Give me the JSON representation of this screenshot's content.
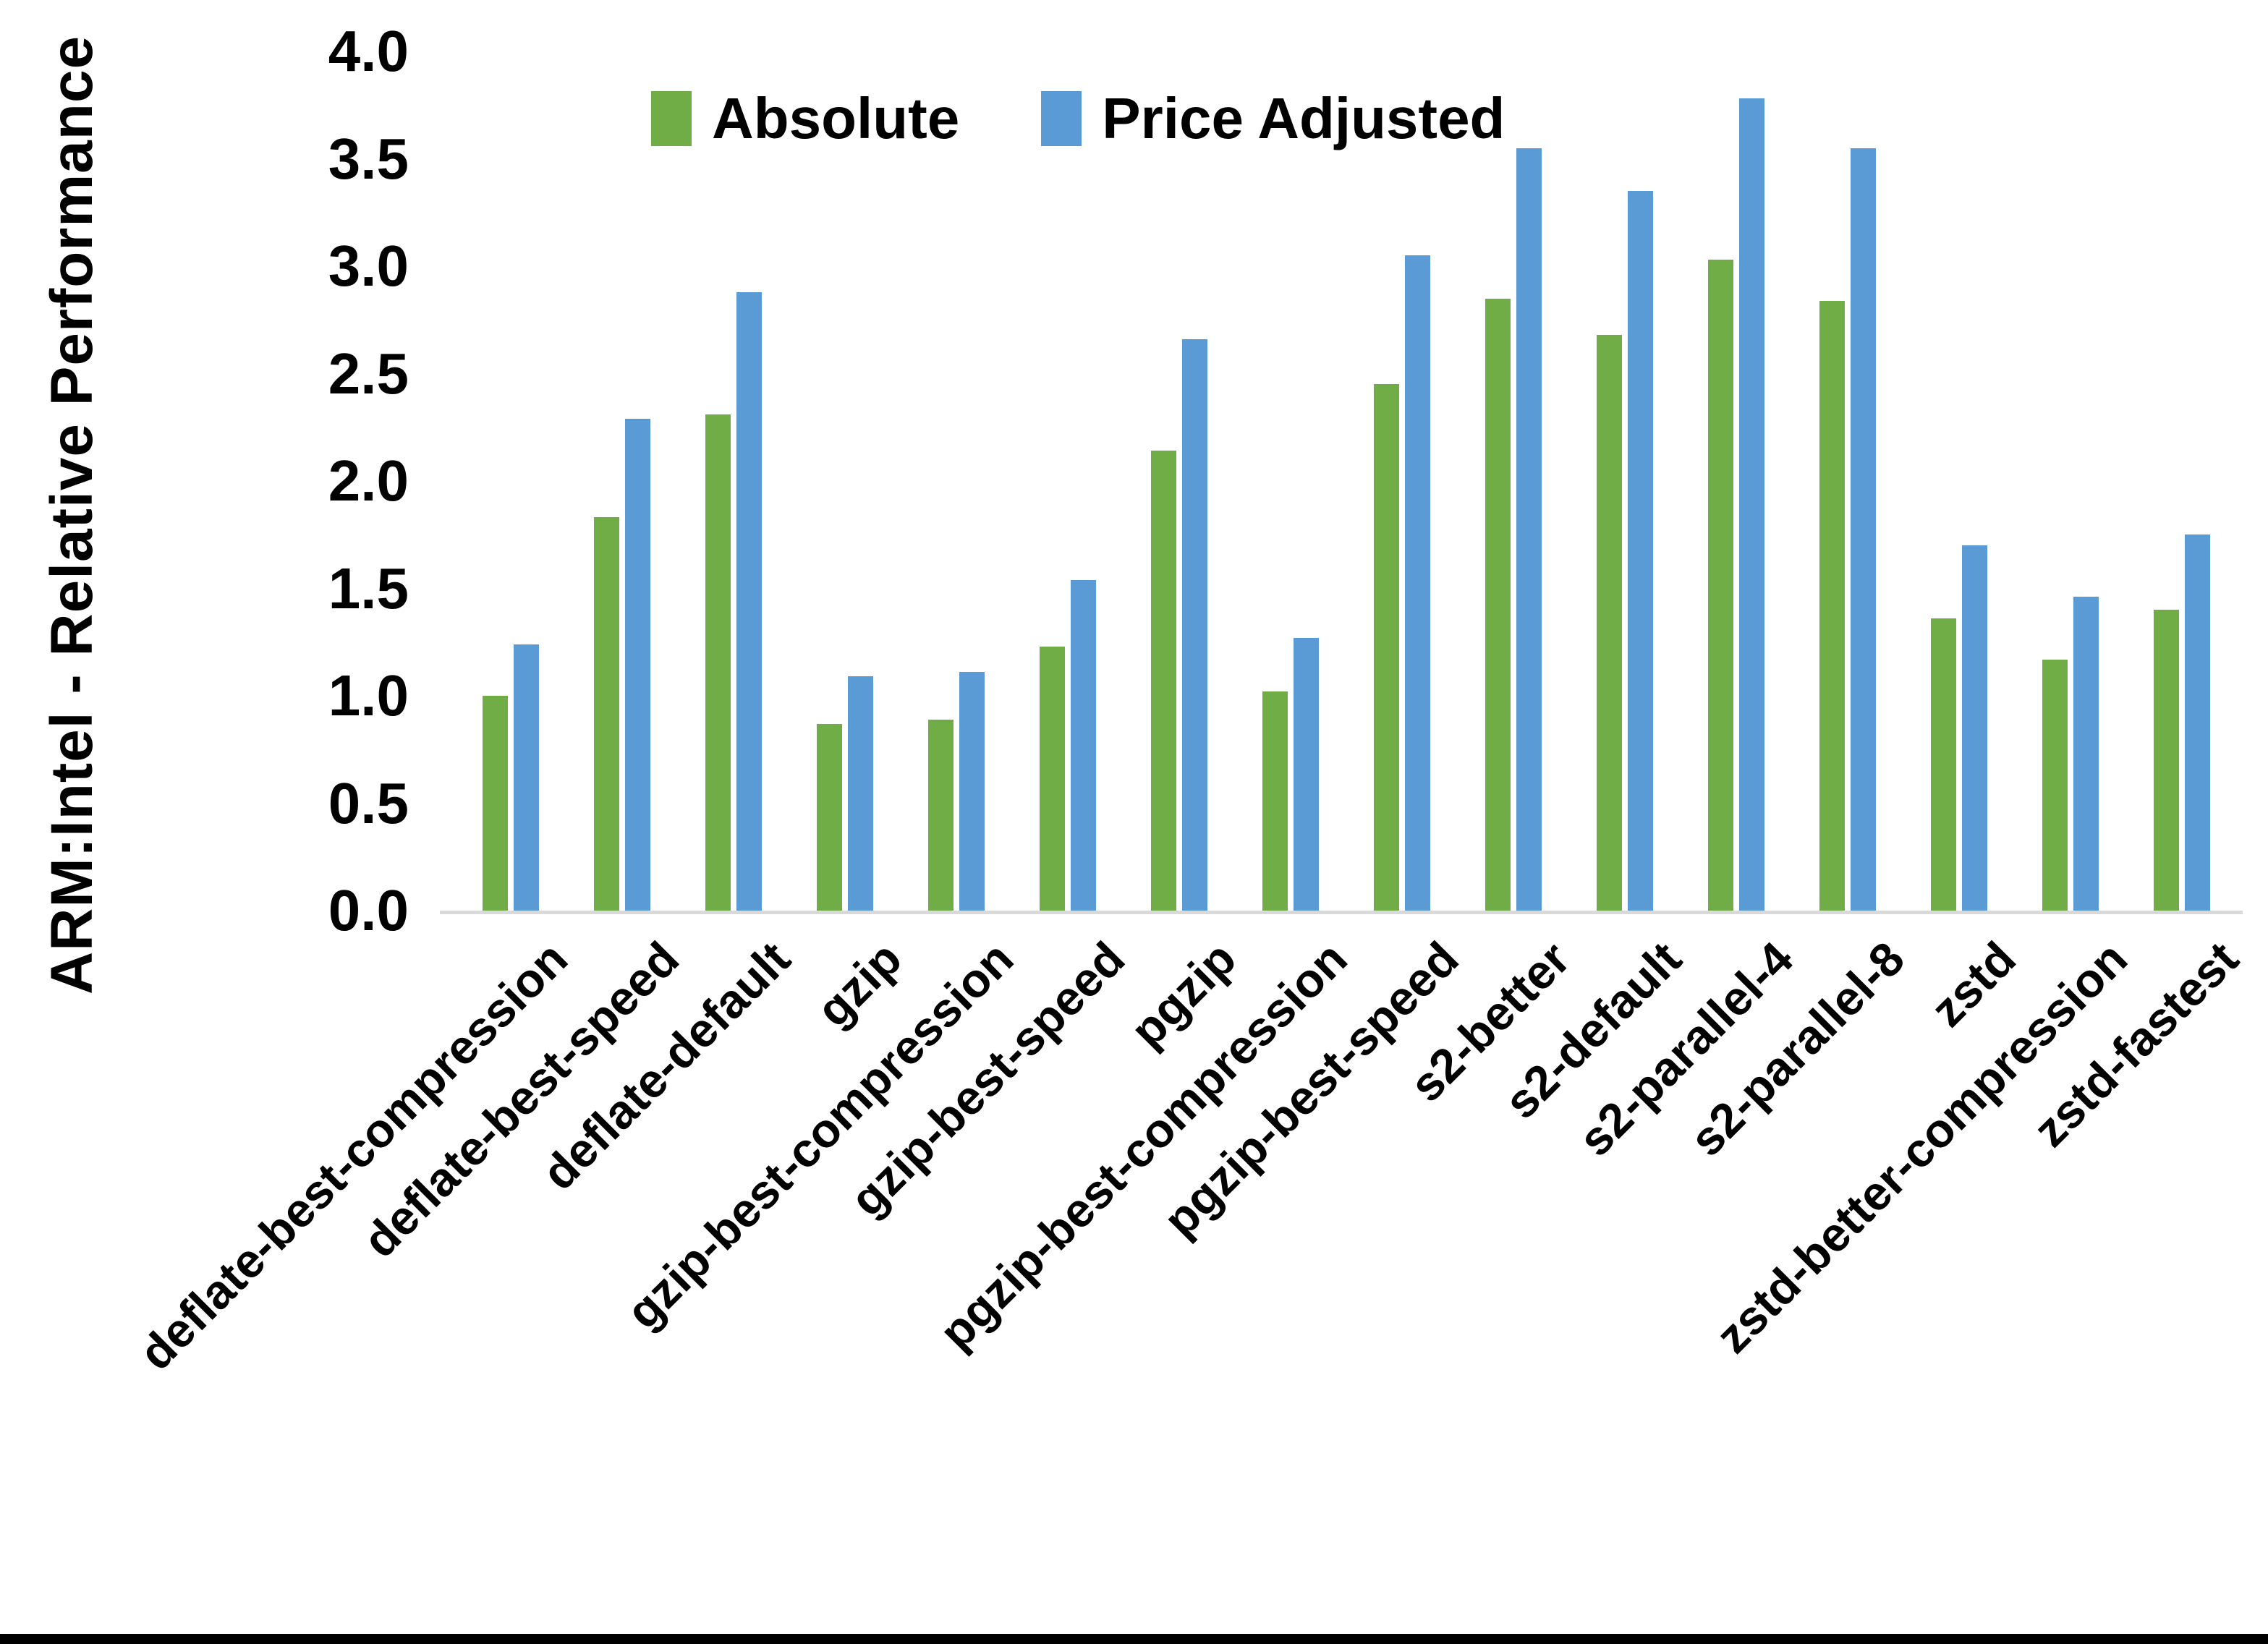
{
  "chart_data": {
    "type": "bar",
    "title": "",
    "ylabel": "ARM:Intel - Relative Performance",
    "xlabel": "",
    "ylim": [
      0.0,
      4.0
    ],
    "ytick_step": 0.5,
    "ytick_labels": [
      "0.0",
      "0.5",
      "1.0",
      "1.5",
      "2.0",
      "2.5",
      "3.0",
      "3.5",
      "4.0"
    ],
    "grid": false,
    "legend_position": "top-center",
    "categories": [
      "deflate-best-compression",
      "deflate-best-speed",
      "deflate-default",
      "gzip",
      "gzip-best-compression",
      "gzip-best-speed",
      "pgzip",
      "pgzip-best-compression",
      "pgzip-best-speed",
      "s2-better",
      "s2-default",
      "s2-parallel-4",
      "s2-parallel-8",
      "zstd",
      "zstd-better-compression",
      "zstd-fastest"
    ],
    "series": [
      {
        "name": "Absolute",
        "color": "#70AD47",
        "values": [
          1.0,
          1.83,
          2.31,
          0.87,
          0.89,
          1.23,
          2.14,
          1.02,
          2.45,
          2.85,
          2.68,
          3.03,
          2.84,
          1.36,
          1.17,
          1.4
        ]
      },
      {
        "name": "Price Adjusted",
        "color": "#5B9BD5",
        "values": [
          1.24,
          2.29,
          2.88,
          1.09,
          1.11,
          1.54,
          2.66,
          1.27,
          3.05,
          3.55,
          3.35,
          3.78,
          3.55,
          1.7,
          1.46,
          1.75
        ]
      }
    ],
    "axis_line_color": "#D9D9D9",
    "text_color": "#000000"
  }
}
